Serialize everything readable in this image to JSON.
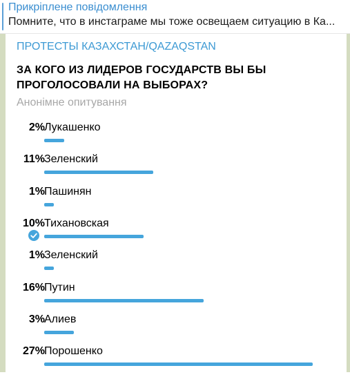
{
  "pinned": {
    "title": "Прикріплене повідомлення",
    "text": "Помните, что в инстаграме мы тоже освещаем ситуацию в Ка..."
  },
  "poll": {
    "channel": "ПРОТЕСТЫ КАЗАХСТАН/QAZAQSTAN",
    "question": "ЗА КОГО ИЗ ЛИДЕРОВ ГОСУДАРСТВ ВЫ БЫ ПРОГОЛОСОВАЛИ НА ВЫБОРАХ?",
    "type": "Анонімне опитування",
    "accent_color": "#45a5dc",
    "options": [
      {
        "percent": "2%",
        "label": "Лукашенко",
        "value": 2,
        "selected": false
      },
      {
        "percent": "11%",
        "label": "Зеленский",
        "value": 11,
        "selected": false
      },
      {
        "percent": "1%",
        "label": "Пашинян",
        "value": 1,
        "selected": false
      },
      {
        "percent": "10%",
        "label": "Тихановская",
        "value": 10,
        "selected": true
      },
      {
        "percent": "1%",
        "label": "Зеленский",
        "value": 1,
        "selected": false
      },
      {
        "percent": "16%",
        "label": "Путин",
        "value": 16,
        "selected": false
      },
      {
        "percent": "3%",
        "label": "Алиев",
        "value": 3,
        "selected": false
      },
      {
        "percent": "27%",
        "label": "Порошенко",
        "value": 27,
        "selected": false
      }
    ]
  }
}
